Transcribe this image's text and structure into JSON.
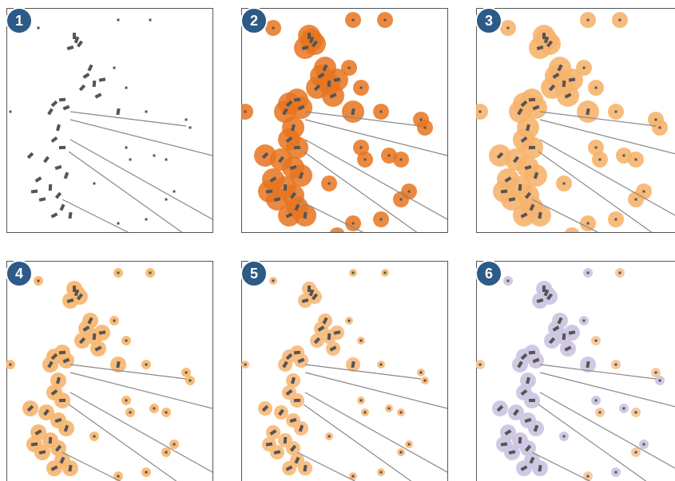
{
  "panels": [
    {
      "label": "1"
    },
    {
      "label": "2"
    },
    {
      "label": "3"
    },
    {
      "label": "4"
    },
    {
      "label": "5"
    },
    {
      "label": "6"
    }
  ]
}
